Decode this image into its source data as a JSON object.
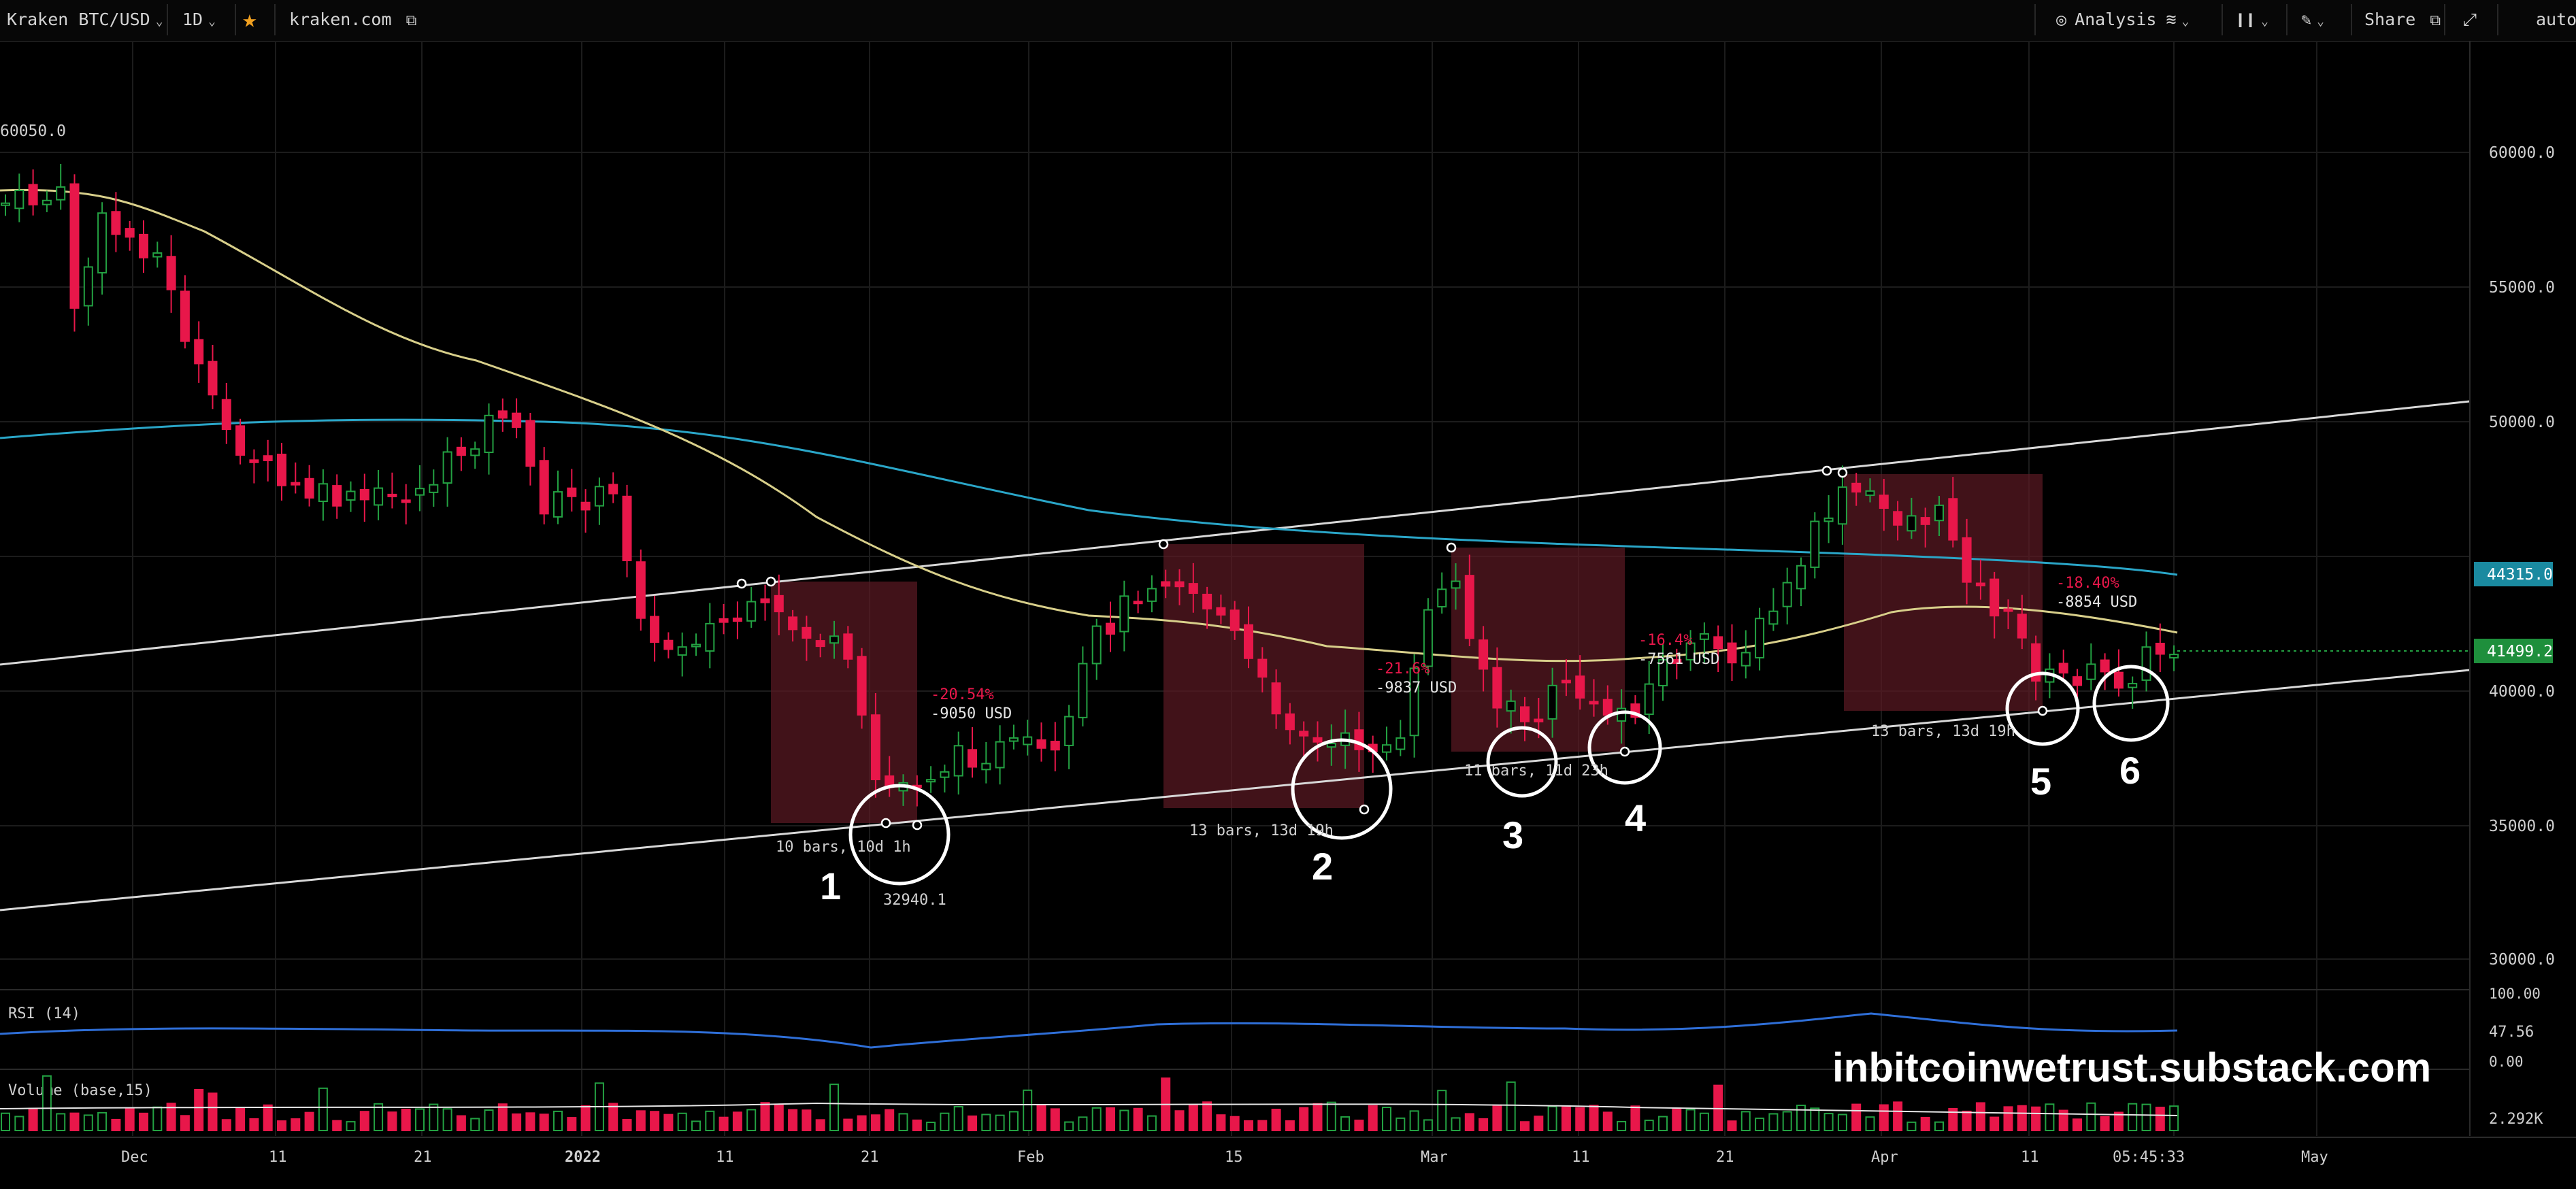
{
  "toolbar": {
    "symbol": "Kraken BTC/USD",
    "interval": "1D",
    "star_icon": "star-icon",
    "source": "kraken.com",
    "analysis": "Analysis",
    "share": "Share",
    "auto": "auto"
  },
  "price_axis": {
    "labels": [
      "60000.0",
      "55000.0",
      "50000.0",
      "40000.0",
      "35000.0",
      "30000.0"
    ],
    "top_left_label": "60050.0",
    "badge_sma": "44315.0",
    "badge_last": "41499.2",
    "badge_sma_color": "#1a8aa0",
    "badge_last_color": "#1e8f3c"
  },
  "time_axis": {
    "labels": [
      "Dec",
      "11",
      "21",
      "2022",
      "11",
      "21",
      "Feb",
      "15",
      "Mar",
      "11",
      "21",
      "Apr",
      "11",
      "05:45:33",
      "May"
    ]
  },
  "annotations": {
    "range1_pct": "-20.54%",
    "range1_usd": "-9050 USD",
    "range1_bars": "10 bars, 10d 1h",
    "range1_low": "32940.1",
    "range2_pct": "-21.6%",
    "range2_usd": "-9837 USD",
    "range2_bars": "13 bars, 13d 19h",
    "range3_pct": "-16.4%",
    "range3_usd": "-7561 USD",
    "range3_bars": "11 bars, 11d 23h",
    "range4_pct": "-18.40%",
    "range4_usd": "-8854 USD",
    "range4_bars": "13 bars, 13d 19h"
  },
  "circle_labels": [
    "1",
    "2",
    "3",
    "4",
    "5",
    "6"
  ],
  "rsi": {
    "title": "RSI (14)",
    "value": "47.56",
    "levels": [
      "100.00",
      "0.00"
    ]
  },
  "volume": {
    "title": "Volume (base,15)",
    "value": "2.292K"
  },
  "watermark": "inbitcoinwetrust.substack.com",
  "chart_data": {
    "type": "candlestick",
    "ylim": [
      28000,
      63000
    ],
    "series": [
      {
        "name": "SMA (light blue)",
        "color": "#2aa6c8"
      },
      {
        "name": "SMA (yellow)",
        "color": "#d8cf8a"
      }
    ]
  },
  "colors": {
    "up": "#23a142",
    "down": "#e8174a",
    "range_box": "#5c1a24"
  }
}
